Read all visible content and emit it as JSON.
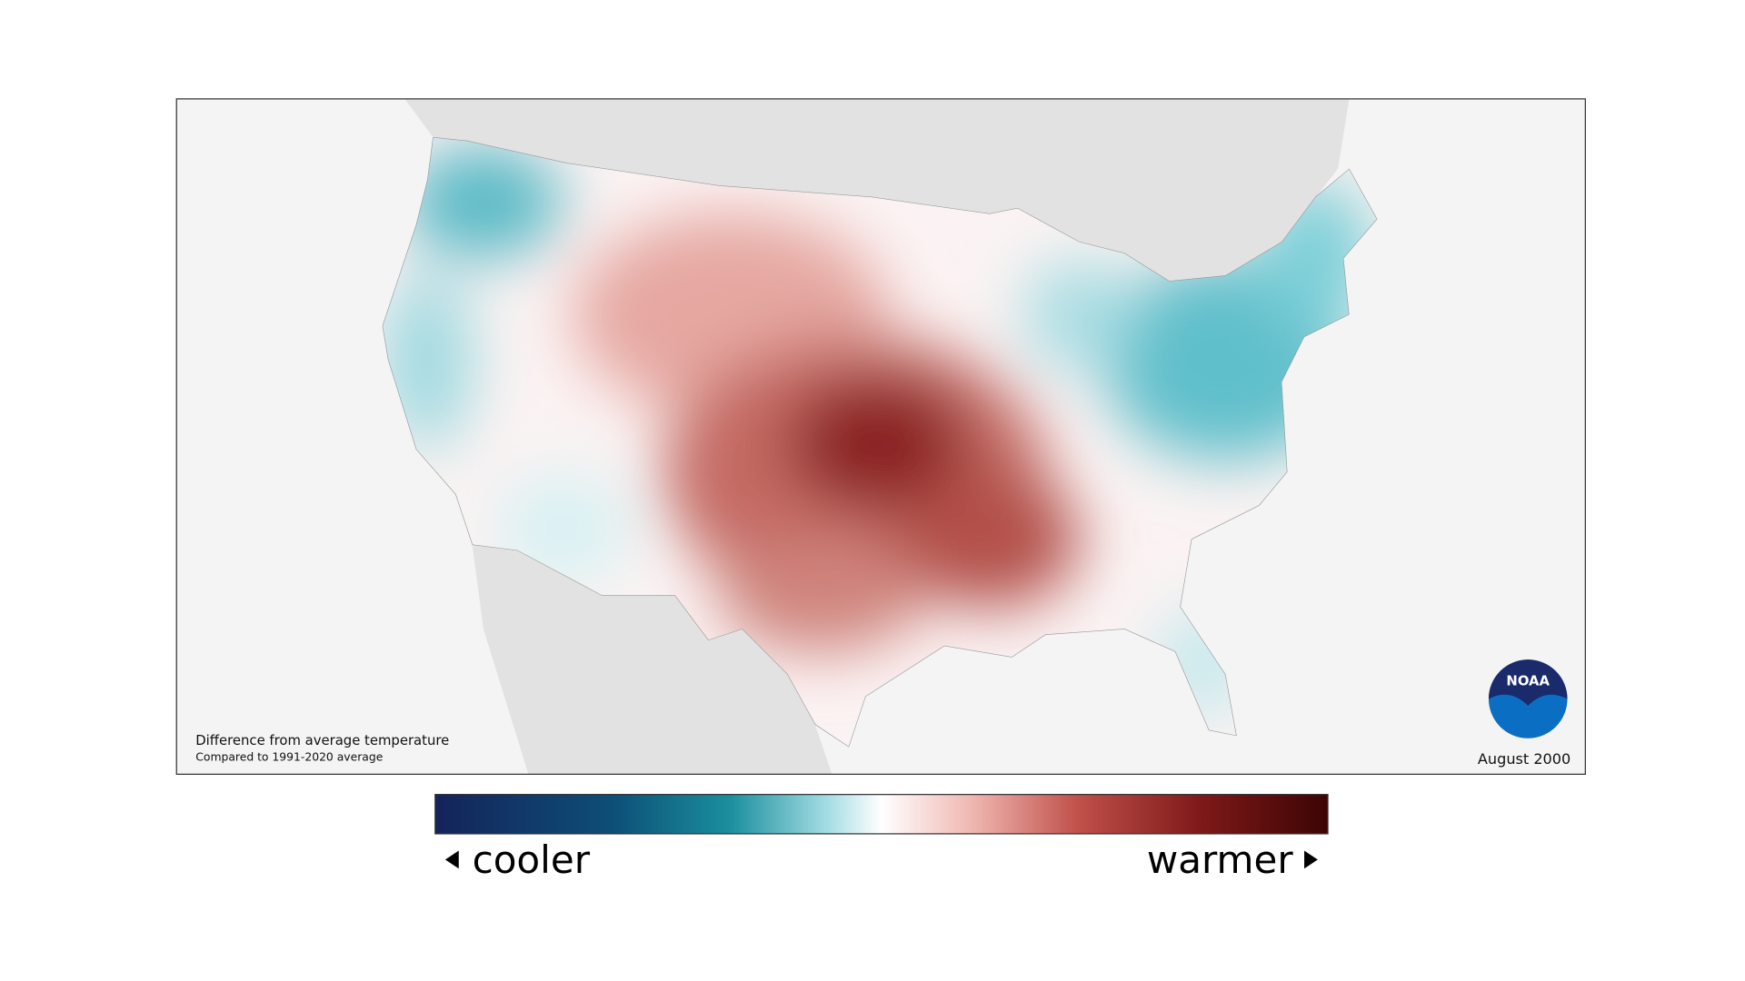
{
  "map": {
    "caption": "Difference from average temperature",
    "subcaption": "Compared to 1991-2020 average",
    "date": "August 2000",
    "logo": "NOAA"
  },
  "legend": {
    "low": "cooler",
    "high": "warmer"
  }
}
